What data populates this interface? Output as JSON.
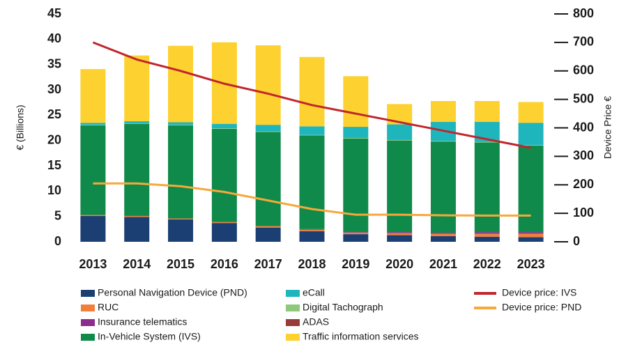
{
  "chart_data": {
    "type": "bar",
    "stacked": true,
    "categories": [
      "2013",
      "2014",
      "2015",
      "2016",
      "2017",
      "2018",
      "2019",
      "2020",
      "2021",
      "2022",
      "2023"
    ],
    "ylabel": "€ (Billions)",
    "y2label": "Device Price €",
    "ylim": [
      0,
      45
    ],
    "yticks": [
      0,
      5,
      10,
      15,
      20,
      25,
      30,
      35,
      40,
      45
    ],
    "y2lim": [
      0,
      800
    ],
    "y2ticks": [
      0,
      100,
      200,
      300,
      400,
      500,
      600,
      700,
      800
    ],
    "series": [
      {
        "name": "Personal Navigation Device (PND)",
        "color": "#1b3f73",
        "values": [
          5.1,
          4.9,
          4.4,
          3.7,
          2.8,
          2.1,
          1.5,
          1.3,
          1.1,
          1.0,
          0.9
        ]
      },
      {
        "name": "RUC",
        "color": "#f07f3c",
        "values": [
          0.2,
          0.2,
          0.2,
          0.2,
          0.3,
          0.3,
          0.3,
          0.4,
          0.5,
          0.6,
          0.7
        ]
      },
      {
        "name": "Insurance telematics",
        "color": "#8b2c8f",
        "values": [
          0,
          0,
          0,
          0,
          0,
          0.1,
          0.1,
          0.2,
          0.2,
          0.3,
          0.3
        ]
      },
      {
        "name": "In-Vehicle System (IVS)",
        "color": "#0f8a4a",
        "values": [
          17.7,
          18.2,
          18.4,
          18.4,
          18.6,
          18.5,
          18.5,
          18.1,
          18.0,
          17.7,
          17.1
        ]
      },
      {
        "name": "Digital Tachograph",
        "color": "#8cc97a",
        "values": [
          0.1,
          0.1,
          0.1,
          0.1,
          0.1,
          0.1,
          0.1,
          0.1,
          0.1,
          0.1,
          0.1
        ]
      },
      {
        "name": "ADAS",
        "color": "#9a3b3b",
        "values": [
          0,
          0,
          0,
          0,
          0,
          0,
          0,
          0,
          0,
          0,
          0
        ]
      },
      {
        "name": "eCall",
        "color": "#1fb5bd",
        "values": [
          0.4,
          0.4,
          0.5,
          0.9,
          1.3,
          1.7,
          2.2,
          3.1,
          3.8,
          4.0,
          4.4
        ]
      },
      {
        "name": "Traffic information services",
        "color": "#fdd12f",
        "values": [
          10.6,
          13.0,
          15.1,
          16.1,
          15.7,
          13.7,
          10.0,
          4.0,
          4.1,
          4.1,
          4.1
        ]
      }
    ],
    "lines": [
      {
        "name": "Device price: IVS",
        "color": "#c0262d",
        "type": "line",
        "axis": "y2",
        "values": [
          700,
          640,
          600,
          555,
          520,
          480,
          450,
          420,
          390,
          360,
          330
        ]
      },
      {
        "name": "Device price: PND",
        "color": "#f7a83a",
        "type": "line",
        "axis": "y2",
        "values": [
          205,
          205,
          195,
          175,
          145,
          115,
          95,
          95,
          93,
          92,
          92
        ]
      }
    ]
  }
}
